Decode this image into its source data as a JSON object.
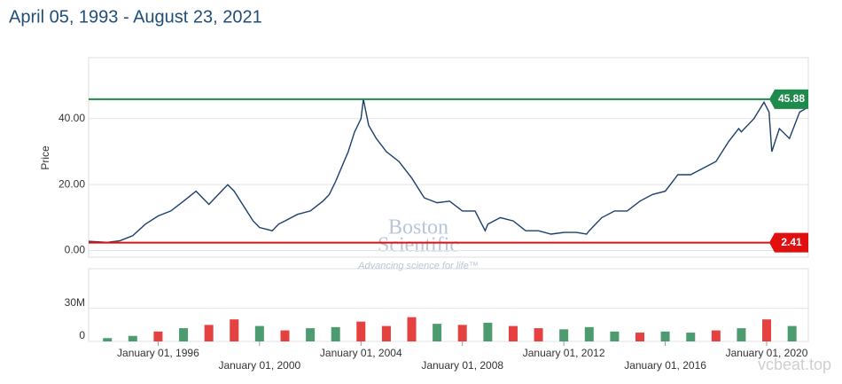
{
  "chart_data": {
    "type": "line",
    "title": "April 05, 1993 - August 23, 2021",
    "y_label": "Price",
    "watermark": [
      "Boston",
      "Scientific",
      "Advancing science for life™"
    ],
    "corner_watermark": "vcbeat.top",
    "color": "#1b3f6b",
    "xlim": [
      "1993-04-05",
      "2021-08-23"
    ],
    "xticks": [
      {
        "value": "1996-01-01",
        "label": "January 01, 1996"
      },
      {
        "value": "2000-01-01",
        "label": "January 01, 2000"
      },
      {
        "value": "2004-01-01",
        "label": "January 01, 2004"
      },
      {
        "value": "2008-01-01",
        "label": "January 01, 2008"
      },
      {
        "value": "2012-01-01",
        "label": "January 01, 2012"
      },
      {
        "value": "2016-01-01",
        "label": "January 01, 2016"
      },
      {
        "value": "2020-01-01",
        "label": "January 01, 2020"
      }
    ],
    "ylim": [
      -2,
      58.5
    ],
    "yticks": [
      {
        "value": 0,
        "label": "0.00"
      },
      {
        "value": 20,
        "label": "20.00"
      },
      {
        "value": 40,
        "label": "40.00"
      }
    ],
    "grid": true,
    "high": 45.88,
    "high_color": "#1e8a4c",
    "low": 2.41,
    "low_color": "#e01010",
    "x": [
      "1993-04-05",
      "1994-01-01",
      "1994-07-01",
      "1995-01-01",
      "1995-07-01",
      "1996-01-01",
      "1996-07-01",
      "1997-01-01",
      "1997-07-01",
      "1998-01-01",
      "1998-07-01",
      "1998-10-01",
      "1999-01-01",
      "1999-07-01",
      "1999-10-01",
      "2000-01-01",
      "2000-07-01",
      "2000-10-01",
      "2001-01-01",
      "2001-07-01",
      "2002-01-01",
      "2002-07-01",
      "2002-10-01",
      "2003-01-01",
      "2003-07-01",
      "2003-10-01",
      "2004-01-01",
      "2004-02-05",
      "2004-04-20",
      "2004-08-08",
      "2005-01-01",
      "2005-07-01",
      "2006-01-01",
      "2006-07-01",
      "2007-01-01",
      "2007-07-01",
      "2008-01-01",
      "2008-07-01",
      "2008-11-24",
      "2009-01-01",
      "2009-07-01",
      "2010-01-01",
      "2010-07-01",
      "2011-01-01",
      "2011-07-01",
      "2012-01-01",
      "2012-07-01",
      "2012-11-24",
      "2013-01-01",
      "2013-07-01",
      "2014-01-01",
      "2014-07-01",
      "2015-01-01",
      "2015-07-01",
      "2016-01-01",
      "2016-07-01",
      "2017-01-01",
      "2017-07-01",
      "2018-01-01",
      "2018-07-01",
      "2018-11-24",
      "2019-01-01",
      "2019-07-01",
      "2019-11-24",
      "2020-02-05",
      "2020-03-15",
      "2020-07-01",
      "2020-11-24",
      "2021-04-20",
      "2021-08-23"
    ],
    "values": [
      2.8,
      2.5,
      3,
      4.5,
      8,
      10.5,
      12,
      15,
      18,
      14,
      18,
      20,
      18,
      12,
      9,
      7,
      6,
      8,
      9,
      11,
      12,
      15,
      17,
      21,
      30,
      36,
      40,
      45.88,
      38,
      34,
      30,
      27,
      22,
      16,
      14.5,
      15,
      12,
      12,
      6,
      8,
      10,
      9,
      6,
      6,
      5,
      5.5,
      5.5,
      5,
      6,
      10,
      12,
      12,
      15,
      17,
      18,
      23,
      23,
      25,
      27,
      33,
      37,
      36,
      40,
      45,
      42,
      30,
      37,
      34,
      42,
      43.5
    ],
    "volume": {
      "ylim": [
        0,
        66000000
      ],
      "yticks": [
        0,
        {
          "value": 30000000,
          "label": "30M"
        }
      ],
      "x": [
        "1994-01-01",
        "1995-01-01",
        "1996-01-01",
        "1997-01-01",
        "1998-01-01",
        "1999-01-01",
        "2000-01-01",
        "2001-01-01",
        "2002-01-01",
        "2003-01-01",
        "2004-01-01",
        "2005-01-01",
        "2006-01-01",
        "2007-01-01",
        "2008-01-01",
        "2009-01-01",
        "2010-01-01",
        "2011-01-01",
        "2012-01-01",
        "2013-01-01",
        "2014-01-01",
        "2015-01-01",
        "2016-01-01",
        "2017-01-01",
        "2018-01-01",
        "2019-01-01",
        "2020-01-01",
        "2021-01-01"
      ],
      "values": [
        3000000,
        5000000,
        9000000,
        12000000,
        15000000,
        20000000,
        14000000,
        10000000,
        12000000,
        13000000,
        18000000,
        14000000,
        22000000,
        16000000,
        15000000,
        17000000,
        14000000,
        12000000,
        11000000,
        13000000,
        9000000,
        8000000,
        9000000,
        8000000,
        10000000,
        12000000,
        20000000,
        14000000
      ],
      "colors": [
        "#2e8b57",
        "#2e8b57",
        "#e02020",
        "#2e8b57",
        "#e02020",
        "#e02020",
        "#2e8b57",
        "#e02020",
        "#2e8b57",
        "#2e8b57",
        "#e02020",
        "#e02020",
        "#e02020",
        "#2e8b57",
        "#e02020",
        "#2e8b57",
        "#e02020",
        "#e02020",
        "#2e8b57",
        "#2e8b57",
        "#2e8b57",
        "#e02020",
        "#2e8b57",
        "#2e8b57",
        "#e02020",
        "#2e8b57",
        "#e02020",
        "#2e8b57"
      ]
    }
  }
}
